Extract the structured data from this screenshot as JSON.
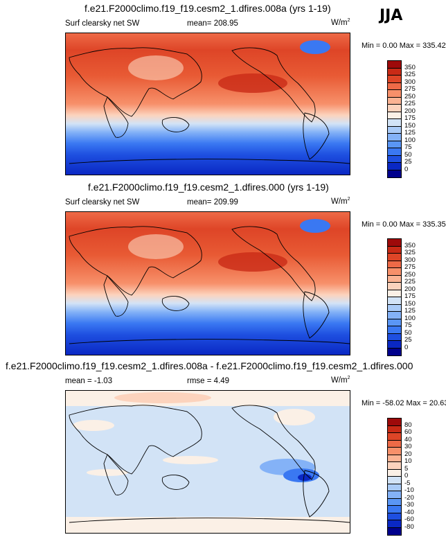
{
  "season": "JJA",
  "colors": {
    "abs": [
      "#00008c",
      "#0a28c4",
      "#1e4fe0",
      "#3a78f2",
      "#5a96f5",
      "#84b2f7",
      "#aacbf7",
      "#d2e3f6",
      "#fbf0e6",
      "#fcd3bd",
      "#fbb393",
      "#f7906a",
      "#ee6a47",
      "#de4527",
      "#c92a16",
      "#9e0a0a"
    ],
    "diff": [
      "#00008c",
      "#0a28c4",
      "#1e4fe0",
      "#3a78f2",
      "#5a96f5",
      "#84b2f7",
      "#aacbf7",
      "#d2e3f6",
      "#fbf0e6",
      "#fcd3bd",
      "#fbb393",
      "#f7906a",
      "#ee6a47",
      "#de4527",
      "#c92a16",
      "#9e0a0a"
    ]
  },
  "panels": [
    {
      "title": "f.e21.F2000climo.f19_f19.cesm2_1.dfires.008a (yrs 1-19)",
      "left_label": "Surf clearsky net SW",
      "mean_label": "mean=",
      "mean_value": "208.95",
      "units": "W/m",
      "units_sup": "2",
      "min_label": "Min =",
      "min_value": "0.00",
      "max_label": "Max =",
      "max_value": "335.42",
      "ticks": [
        "350",
        "325",
        "300",
        "275",
        "250",
        "225",
        "200",
        "175",
        "150",
        "125",
        "100",
        "75",
        "50",
        "25",
        "0"
      ]
    },
    {
      "title": "f.e21.F2000climo.f19_f19.cesm2_1.dfires.000 (yrs 1-19)",
      "left_label": "Surf clearsky net SW",
      "mean_label": "mean=",
      "mean_value": "209.99",
      "units": "W/m",
      "units_sup": "2",
      "min_label": "Min =",
      "min_value": "0.00",
      "max_label": "Max =",
      "max_value": "335.35",
      "ticks": [
        "350",
        "325",
        "300",
        "275",
        "250",
        "225",
        "200",
        "175",
        "150",
        "125",
        "100",
        "75",
        "50",
        "25",
        "0"
      ]
    },
    {
      "title": "f.e21.F2000climo.f19_f19.cesm2_1.dfires.008a - f.e21.F2000climo.f19_f19.cesm2_1.dfires.000",
      "left_label": "mean =",
      "mean_label": "",
      "mean_value": "-1.03",
      "rmse_label": "rmse =",
      "rmse_value": "4.49",
      "units": "W/m",
      "units_sup": "2",
      "min_label": "Min =",
      "min_value": "-58.02",
      "max_label": "Max =",
      "max_value": "20.63",
      "ticks": [
        "80",
        "60",
        "40",
        "30",
        "20",
        "10",
        "5",
        "0",
        "-5",
        "-10",
        "-20",
        "-30",
        "-40",
        "-60",
        "-80"
      ]
    }
  ]
}
